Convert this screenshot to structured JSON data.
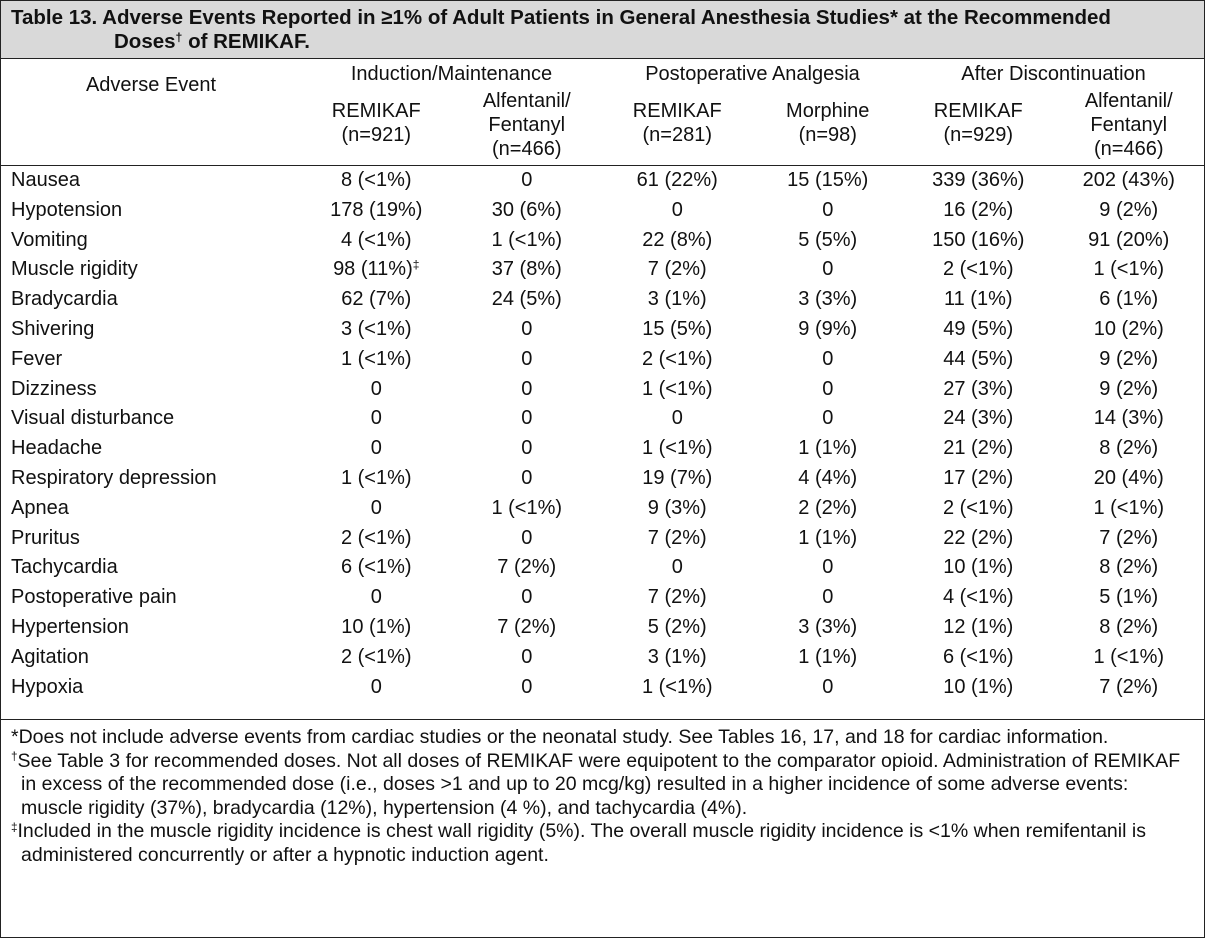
{
  "title": {
    "line1": "Table 13. Adverse Events Reported in ≥1% of Adult Patients in General Anesthesia Studies* at the Recommended",
    "line2_pre": "Doses",
    "line2_mark": "†",
    "line2_post": " of REMIKAF."
  },
  "header": {
    "adverse_event": "Adverse Event",
    "groups": [
      "Induction/Maintenance",
      "Postoperative Analgesia",
      "After Discontinuation"
    ],
    "columns": [
      {
        "l1": "REMIKAF",
        "l2": "(n=921)",
        "l3": ""
      },
      {
        "l1": "Alfentanil/",
        "l2": "Fentanyl",
        "l3": "(n=466)"
      },
      {
        "l1": "REMIKAF",
        "l2": "(n=281)",
        "l3": ""
      },
      {
        "l1": "Morphine",
        "l2": "(n=98)",
        "l3": ""
      },
      {
        "l1": "REMIKAF",
        "l2": "(n=929)",
        "l3": ""
      },
      {
        "l1": "Alfentanil/",
        "l2": "Fentanyl",
        "l3": "(n=466)"
      }
    ]
  },
  "rows": [
    {
      "event": "Nausea",
      "v": [
        "8 (<1%)",
        "0",
        "61 (22%)",
        "15 (15%)",
        "339 (36%)",
        "202 (43%)"
      ]
    },
    {
      "event": "Hypotension",
      "v": [
        "178 (19%)",
        "30 (6%)",
        "0",
        "0",
        "16 (2%)",
        "9 (2%)"
      ]
    },
    {
      "event": "Vomiting",
      "v": [
        "4 (<1%)",
        "1 (<1%)",
        "22 (8%)",
        "5 (5%)",
        "150 (16%)",
        "91 (20%)"
      ]
    },
    {
      "event": "Muscle rigidity",
      "v": [
        "98 (11%)",
        "37 (8%)",
        "7 (2%)",
        "0",
        "2 (<1%)",
        "1 (<1%)"
      ],
      "mark0": "‡"
    },
    {
      "event": "Bradycardia",
      "v": [
        "62 (7%)",
        "24 (5%)",
        "3 (1%)",
        "3 (3%)",
        "11 (1%)",
        "6 (1%)"
      ]
    },
    {
      "event": "Shivering",
      "v": [
        "3 (<1%)",
        "0",
        "15 (5%)",
        "9 (9%)",
        "49 (5%)",
        "10 (2%)"
      ]
    },
    {
      "event": "Fever",
      "v": [
        "1 (<1%)",
        "0",
        "2 (<1%)",
        "0",
        "44 (5%)",
        "9 (2%)"
      ]
    },
    {
      "event": "Dizziness",
      "v": [
        "0",
        "0",
        "1 (<1%)",
        "0",
        "27 (3%)",
        "9 (2%)"
      ]
    },
    {
      "event": "Visual disturbance",
      "v": [
        "0",
        "0",
        "0",
        "0",
        "24 (3%)",
        "14 (3%)"
      ]
    },
    {
      "event": "Headache",
      "v": [
        "0",
        "0",
        "1 (<1%)",
        "1 (1%)",
        "21 (2%)",
        "8 (2%)"
      ]
    },
    {
      "event": "Respiratory depression",
      "v": [
        "1 (<1%)",
        "0",
        "19 (7%)",
        "4 (4%)",
        "17 (2%)",
        "20 (4%)"
      ]
    },
    {
      "event": "Apnea",
      "v": [
        "0",
        "1 (<1%)",
        "9 (3%)",
        "2 (2%)",
        "2 (<1%)",
        "1 (<1%)"
      ]
    },
    {
      "event": "Pruritus",
      "v": [
        "2 (<1%)",
        "0",
        "7 (2%)",
        "1 (1%)",
        "22 (2%)",
        "7 (2%)"
      ]
    },
    {
      "event": "Tachycardia",
      "v": [
        "6 (<1%)",
        "7 (2%)",
        "0",
        "0",
        "10 (1%)",
        "8 (2%)"
      ]
    },
    {
      "event": "Postoperative pain",
      "v": [
        "0",
        "0",
        "7 (2%)",
        "0",
        "4 (<1%)",
        "5 (1%)"
      ]
    },
    {
      "event": "Hypertension",
      "v": [
        "10 (1%)",
        "7 (2%)",
        "5 (2%)",
        "3 (3%)",
        "12 (1%)",
        "8 (2%)"
      ]
    },
    {
      "event": "Agitation",
      "v": [
        "2 (<1%)",
        "0",
        "3 (1%)",
        "1 (1%)",
        "6 (<1%)",
        "1 (<1%)"
      ]
    },
    {
      "event": "Hypoxia",
      "v": [
        "0",
        "0",
        "1 (<1%)",
        "0",
        "10 (1%)",
        "7 (2%)"
      ]
    }
  ],
  "footnotes": [
    {
      "mark": "*",
      "text": "Does not include adverse events from cardiac studies or the neonatal study. See Tables 16, 17, and 18 for cardiac information."
    },
    {
      "mark": "†",
      "text": "See Table 3 for recommended doses. Not all doses of REMIKAF were equipotent to the comparator opioid. Administration of REMIKAF in excess of the recommended dose (i.e., doses >1 and up to 20 mcg/kg) resulted in a higher incidence of some adverse events: muscle rigidity (37%), bradycardia (12%), hypertension (4 %), and tachycardia (4%)."
    },
    {
      "mark": "‡",
      "text": "Included in the muscle rigidity incidence is chest wall rigidity (5%). The overall muscle rigidity incidence is <1% when remifentanil is administered concurrently or after a hypnotic induction agent."
    }
  ]
}
